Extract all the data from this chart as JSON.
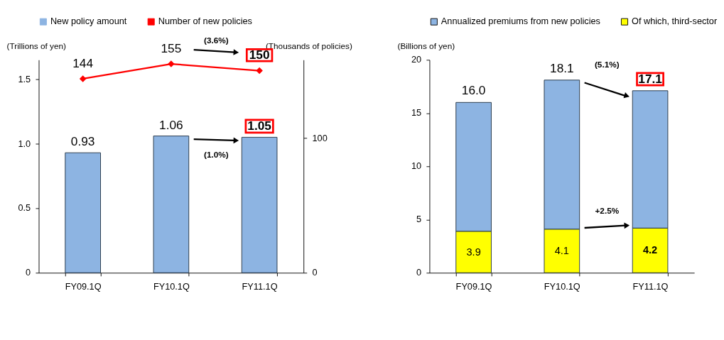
{
  "chart_data": [
    {
      "type": "bar",
      "categories": [
        "FY09.1Q",
        "FY10.1Q",
        "FY11.1Q"
      ],
      "ylabel": "(Trillions of yen)",
      "y2label": "(Thousands of policies)",
      "series": [
        {
          "name": "New policy amount",
          "color": "#8db4e2",
          "values": [
            0.93,
            1.06,
            1.05
          ],
          "value_labels": [
            "0.93",
            "1.06",
            "1.05"
          ]
        },
        {
          "name": "Number of new policies",
          "type": "line",
          "axis": "y2",
          "color": "#ff0000",
          "values": [
            144,
            155,
            150
          ],
          "value_labels": [
            "144",
            "155",
            "150"
          ]
        }
      ],
      "ylim": [
        0,
        1.65
      ],
      "yticks": [
        0,
        0.5,
        {
          "value": 1,
          "label": "1.0"
        },
        1.5
      ],
      "y2lim": [
        0,
        158
      ],
      "y2ticks": [
        0,
        100
      ],
      "annotations": [
        "(3.6%)",
        "(1.0%)"
      ],
      "legend": "top left",
      "grid": false,
      "marker": "diamond"
    },
    {
      "type": "bar",
      "categories": [
        "FY09.1Q",
        "FY10.1Q",
        "FY11.1Q"
      ],
      "ylabel": "(Billions of yen)",
      "stacked": true,
      "series": [
        {
          "name": "Of which, third-sector",
          "color": "#ffff00",
          "values": [
            3.9,
            4.1,
            4.2
          ],
          "value_labels": [
            "3.9",
            "4.1",
            "4.2"
          ]
        },
        {
          "name": "Annualized premiums from new policies",
          "color": "#8db4e2",
          "values": [
            12.1,
            14.0,
            12.9
          ]
        }
      ],
      "totals": [
        "16.0",
        "18.1",
        "17.1"
      ],
      "ylim": [
        0,
        20
      ],
      "yticks": [
        0,
        5,
        10,
        15,
        20
      ],
      "annotations": [
        "(5.1%)",
        "+2.5%"
      ],
      "legend": "top left",
      "grid": false
    }
  ]
}
